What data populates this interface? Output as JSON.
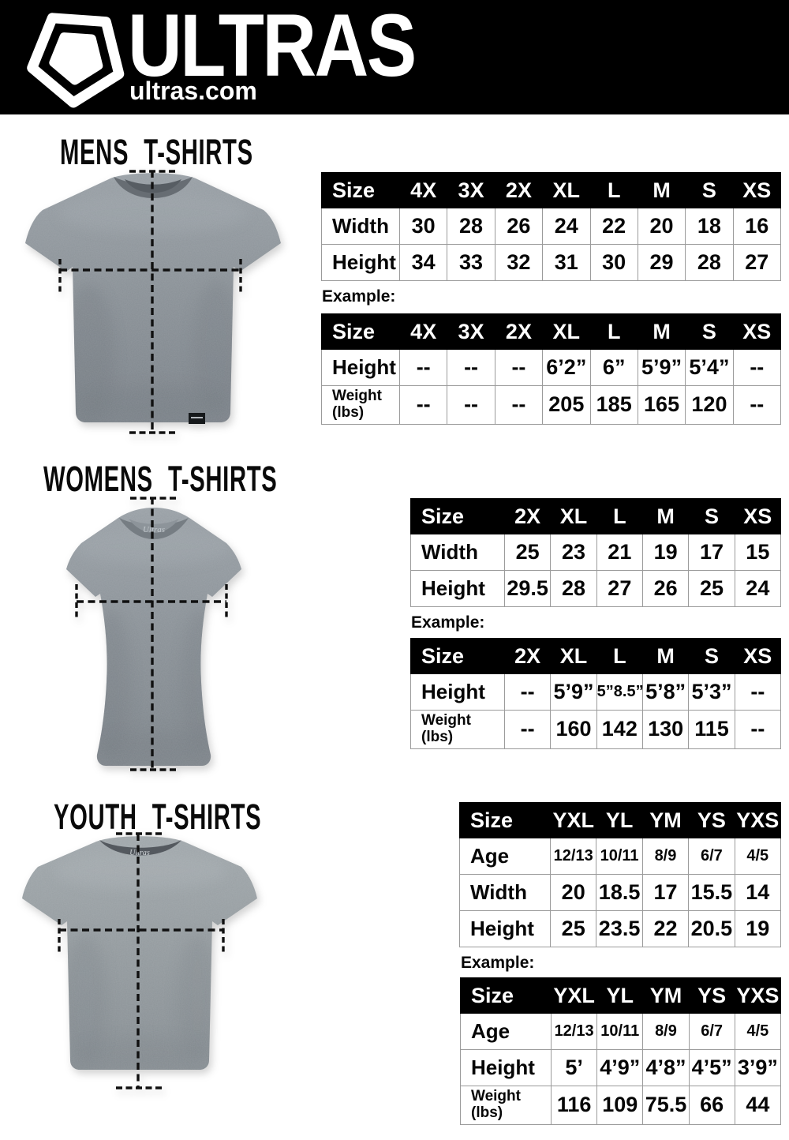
{
  "header": {
    "brand": "ULTRAS",
    "site": "ultras.com",
    "background": "#000000",
    "logo_icon": "pentagon-shield"
  },
  "colors": {
    "table_header_bg": "#000000",
    "table_header_text": "#ffffff",
    "table_border": "#9b9b9b",
    "body_text": "#060606",
    "shirt_grey": "#899096"
  },
  "sections": [
    {
      "title": "MENS T-SHIRTS",
      "example_label": "Example:",
      "size_table": {
        "columns": [
          "Size",
          "4X",
          "3X",
          "2X",
          "XL",
          "L",
          "M",
          "S",
          "XS"
        ],
        "rows": [
          [
            "Width",
            "30",
            "28",
            "26",
            "24",
            "22",
            "20",
            "18",
            "16"
          ],
          [
            "Height",
            "34",
            "33",
            "32",
            "31",
            "30",
            "29",
            "28",
            "27"
          ]
        ]
      },
      "example_table": {
        "columns": [
          "Size",
          "4X",
          "3X",
          "2X",
          "XL",
          "L",
          "M",
          "S",
          "XS"
        ],
        "rows": [
          [
            "Height",
            "--",
            "--",
            "--",
            "6’2”",
            "6”",
            "5’9”",
            "5’4”",
            "--"
          ],
          [
            "Weight (lbs)",
            "--",
            "--",
            "--",
            "205",
            "185",
            "165",
            "120",
            "--"
          ]
        ]
      }
    },
    {
      "title": "WOMENS T-SHIRTS",
      "example_label": "Example:",
      "size_table": {
        "columns": [
          "Size",
          "2X",
          "XL",
          "L",
          "M",
          "S",
          "XS"
        ],
        "rows": [
          [
            "Width",
            "25",
            "23",
            "21",
            "19",
            "17",
            "15"
          ],
          [
            "Height",
            "29.5",
            "28",
            "27",
            "26",
            "25",
            "24"
          ]
        ]
      },
      "example_table": {
        "columns": [
          "Size",
          "2X",
          "XL",
          "L",
          "M",
          "S",
          "XS"
        ],
        "rows": [
          [
            "Height",
            "--",
            "5’9”",
            "5”8.5”",
            "5’8”",
            "5’3”",
            "--"
          ],
          [
            "Weight (lbs)",
            "--",
            "160",
            "142",
            "130",
            "115",
            "--"
          ]
        ]
      }
    },
    {
      "title": "YOUTH T-SHIRTS",
      "example_label": "Example:",
      "size_table": {
        "columns": [
          "Size",
          "YXL",
          "YL",
          "YM",
          "YS",
          "YXS"
        ],
        "rows": [
          [
            "Age",
            "12/13",
            "10/11",
            "8/9",
            "6/7",
            "4/5"
          ],
          [
            "Width",
            "20",
            "18.5",
            "17",
            "15.5",
            "14"
          ],
          [
            "Height",
            "25",
            "23.5",
            "22",
            "20.5",
            "19"
          ]
        ]
      },
      "example_table": {
        "columns": [
          "Size",
          "YXL",
          "YL",
          "YM",
          "YS",
          "YXS"
        ],
        "rows": [
          [
            "Age",
            "12/13",
            "10/11",
            "8/9",
            "6/7",
            "4/5"
          ],
          [
            "Height",
            "5’",
            "4’9”",
            "4’8”",
            "4’5”",
            "3’9”"
          ],
          [
            "Weight (lbs)",
            "116",
            "109",
            "75.5",
            "66",
            "44"
          ]
        ]
      }
    }
  ]
}
